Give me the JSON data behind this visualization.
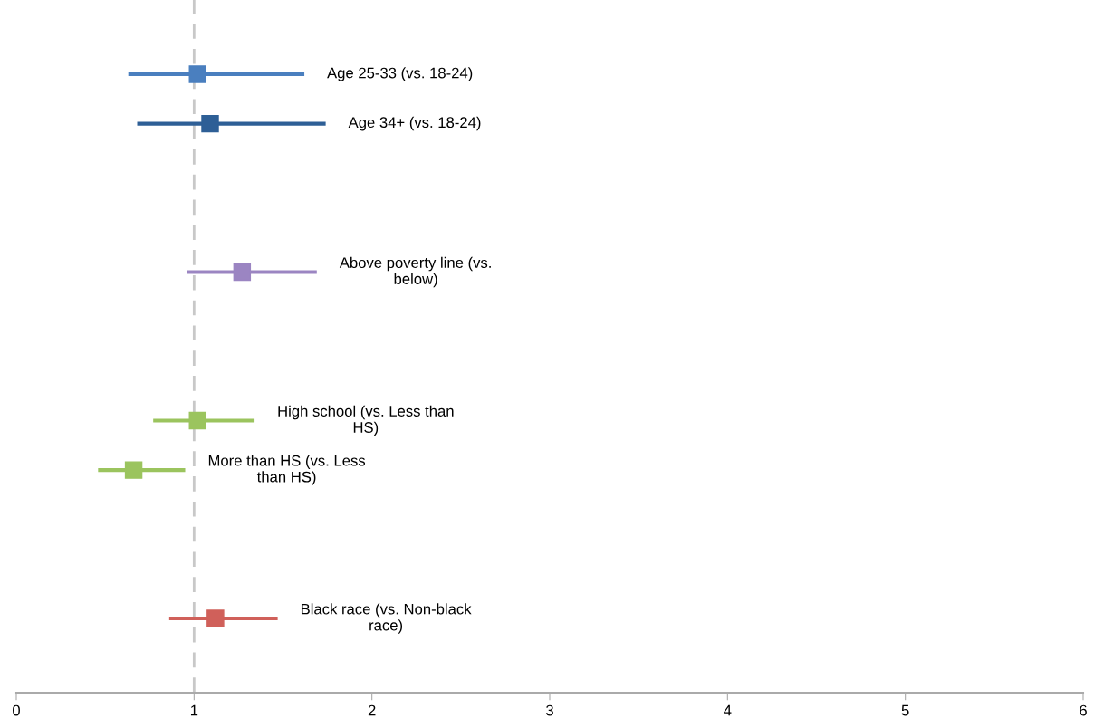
{
  "chart_data": {
    "type": "scatter",
    "orientation": "horizontal",
    "marker": "square",
    "grid": false,
    "legend": false,
    "tick_labels": "x",
    "categories": [
      null,
      null,
      null,
      null,
      null,
      null,
      null,
      null,
      null,
      null,
      null,
      null,
      null,
      null
    ],
    "xlim": [
      0,
      6
    ],
    "xticks": [
      0,
      1,
      2,
      3,
      4,
      5,
      6
    ],
    "series": [
      {
        "name": "Age 25-33 (vs. 18-24)",
        "color": "#4a7fbf",
        "values": [
          null,
          1.02,
          null,
          null,
          null,
          null,
          null,
          null,
          null,
          null,
          null,
          null,
          null,
          null
        ],
        "errors": [
          null,
          [
            0.63,
            1.62
          ],
          null,
          null,
          null,
          null,
          null,
          null,
          null,
          null,
          null,
          null,
          null,
          null
        ]
      },
      {
        "name": "Age 34+ (vs. 18-24)",
        "color": "#2e5f96",
        "values": [
          null,
          null,
          1.09,
          null,
          null,
          null,
          null,
          null,
          null,
          null,
          null,
          null,
          null,
          null
        ],
        "errors": [
          null,
          null,
          [
            0.68,
            1.74
          ],
          null,
          null,
          null,
          null,
          null,
          null,
          null,
          null,
          null,
          null,
          null
        ]
      },
      {
        "name": "Above poverty line (vs.\nbelow)",
        "color": "#9b85c2",
        "values": [
          null,
          null,
          null,
          null,
          null,
          1.27,
          null,
          null,
          null,
          null,
          null,
          null,
          null,
          null
        ],
        "errors": [
          null,
          null,
          null,
          null,
          null,
          [
            0.96,
            1.69
          ],
          null,
          null,
          null,
          null,
          null,
          null,
          null,
          null
        ]
      },
      {
        "name": "High school (vs. Less than\nHS)",
        "color": "#9bc45e",
        "values": [
          null,
          null,
          null,
          null,
          null,
          null,
          null,
          null,
          1.02,
          null,
          null,
          null,
          null,
          null
        ],
        "errors": [
          null,
          null,
          null,
          null,
          null,
          null,
          null,
          null,
          [
            0.77,
            1.34
          ],
          null,
          null,
          null,
          null,
          null
        ]
      },
      {
        "name": "More than HS (vs. Less\nthan HS)",
        "color": "#9bc45e",
        "values": [
          null,
          null,
          null,
          null,
          null,
          null,
          null,
          null,
          null,
          0.66,
          null,
          null,
          null,
          null
        ],
        "errors": [
          null,
          null,
          null,
          null,
          null,
          null,
          null,
          null,
          null,
          [
            0.46,
            0.95
          ],
          null,
          null,
          null,
          null
        ]
      },
      {
        "name": "Black race (vs. Non-black\nrace)",
        "color": "#d0605a",
        "values": [
          null,
          null,
          null,
          null,
          null,
          null,
          null,
          null,
          null,
          null,
          null,
          null,
          1.12,
          null
        ],
        "errors": [
          null,
          null,
          null,
          null,
          null,
          null,
          null,
          null,
          null,
          null,
          null,
          null,
          [
            0.86,
            1.47
          ],
          null
        ]
      }
    ],
    "ref_lines": [
      {
        "axis": "x",
        "value": 1,
        "color": "#c8c8c8",
        "line_style": "dashed"
      }
    ]
  }
}
